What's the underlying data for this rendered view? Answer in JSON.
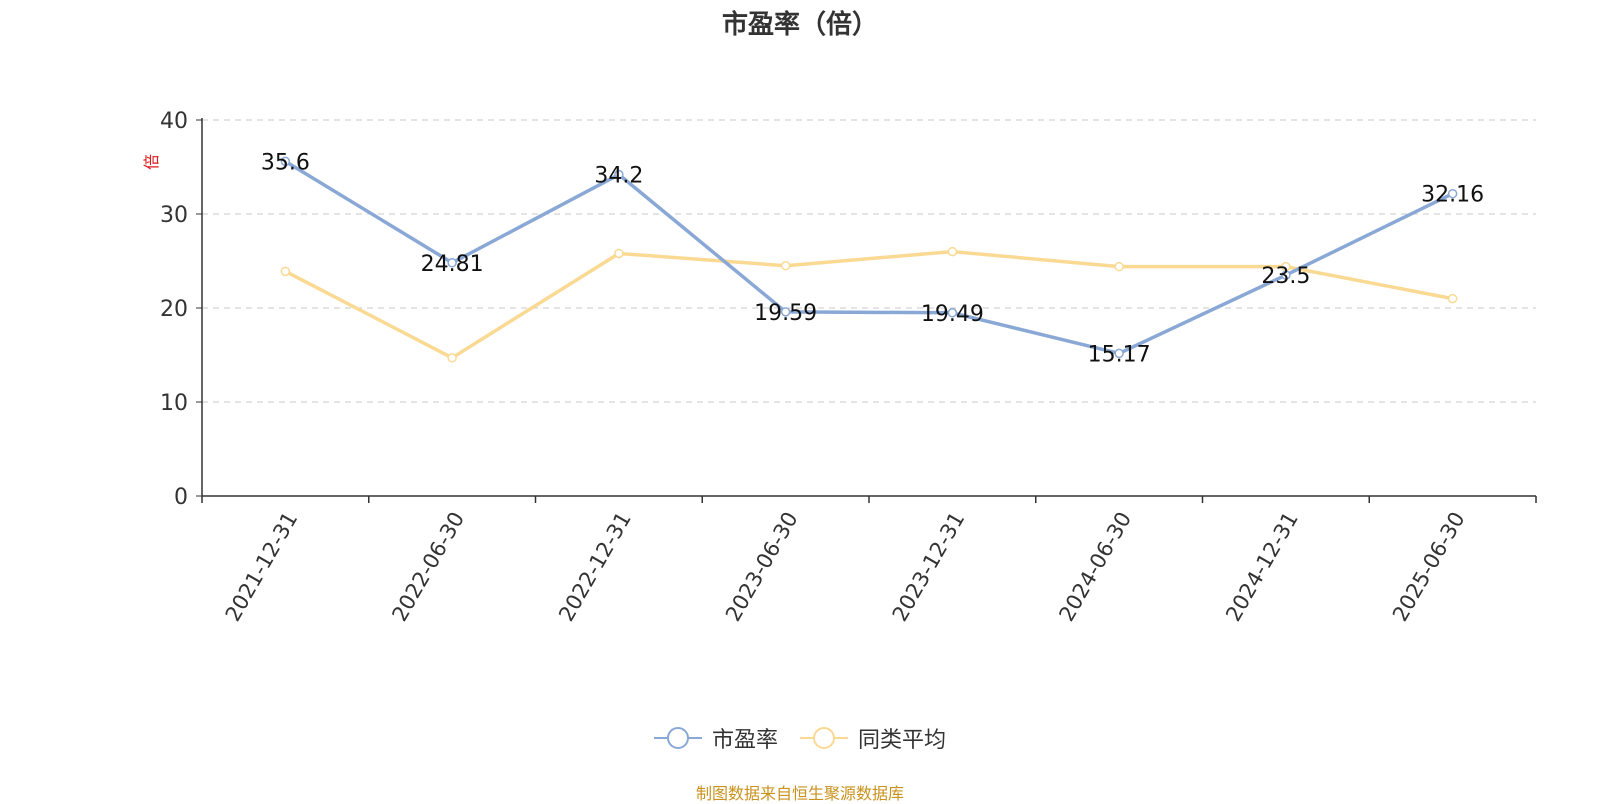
{
  "chart_data": {
    "type": "line",
    "title": "市盈率（倍）",
    "ylabel": "倍",
    "categories": [
      "2021-12-31",
      "2022-06-30",
      "2022-12-31",
      "2023-06-30",
      "2023-12-31",
      "2024-06-30",
      "2024-12-31",
      "2025-06-30"
    ],
    "ylim": [
      0,
      40
    ],
    "yticks": [
      0,
      10,
      20,
      30,
      40
    ],
    "grid": true,
    "legend_position": "bottom",
    "series": [
      {
        "name": "市盈率",
        "color": "#8aa8d6",
        "values": [
          35.6,
          24.81,
          34.2,
          19.59,
          19.49,
          15.17,
          23.5,
          32.16
        ],
        "labels": [
          "35.6",
          "24.81",
          "34.2",
          "19.59",
          "19.49",
          "15.17",
          "23.5",
          "32.16"
        ]
      },
      {
        "name": "同类平均",
        "color": "#fad993",
        "values": [
          23.9,
          14.7,
          25.8,
          24.5,
          26.0,
          24.4,
          24.4,
          21.0
        ]
      }
    ],
    "source_note": "制图数据来自恒生聚源数据库"
  }
}
